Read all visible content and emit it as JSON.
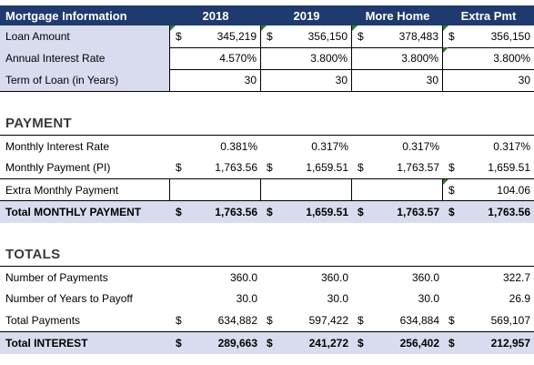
{
  "header": {
    "title": "Mortgage Information",
    "columns": [
      "2018",
      "2019",
      "More Home",
      "Extra Pmt"
    ]
  },
  "mortgage_info": {
    "rows": [
      {
        "label": "Loan Amount",
        "currency": "$",
        "values": [
          "345,219",
          "356,150",
          "378,483",
          "356,150"
        ]
      },
      {
        "label": "Annual Interest Rate",
        "currency": "",
        "values": [
          "4.570%",
          "3.800%",
          "3.800%",
          "3.800%"
        ]
      },
      {
        "label": "Term of Loan (in Years)",
        "currency": "",
        "values": [
          "30",
          "30",
          "30",
          "30"
        ]
      }
    ]
  },
  "payment": {
    "title": "PAYMENT",
    "monthly_interest_rate": {
      "label": "Monthly Interest Rate",
      "values": [
        "0.381%",
        "0.317%",
        "0.317%",
        "0.317%"
      ]
    },
    "monthly_payment": {
      "label": "Monthly Payment (PI)",
      "currency": "$",
      "values": [
        "1,763.56",
        "1,659.51",
        "1,763.57",
        "1,659.51"
      ]
    },
    "extra_payment": {
      "label": "Extra Monthly Payment",
      "currency": "$",
      "value": "104.06"
    },
    "total": {
      "label": "Total MONTHLY PAYMENT",
      "currency": "$",
      "values": [
        "1,763.56",
        "1,659.51",
        "1,763.57",
        "1,763.56"
      ]
    }
  },
  "totals": {
    "title": "TOTALS",
    "num_payments": {
      "label": "Number of Payments",
      "values": [
        "360.0",
        "360.0",
        "360.0",
        "322.7"
      ]
    },
    "years_to_payoff": {
      "label": "Number of Years to Payoff",
      "values": [
        "30.0",
        "30.0",
        "30.0",
        "26.9"
      ]
    },
    "total_payments": {
      "label": "Total Payments",
      "currency": "$",
      "values": [
        "634,882",
        "597,422",
        "634,884",
        "569,107"
      ]
    },
    "total_interest": {
      "label": "Total INTEREST",
      "currency": "$",
      "values": [
        "289,663",
        "241,272",
        "256,402",
        "212,957"
      ]
    }
  },
  "colors": {
    "header_bg": "#1F3A6E",
    "label_bg": "#D8DCEE",
    "marker": "#2E7D32"
  }
}
